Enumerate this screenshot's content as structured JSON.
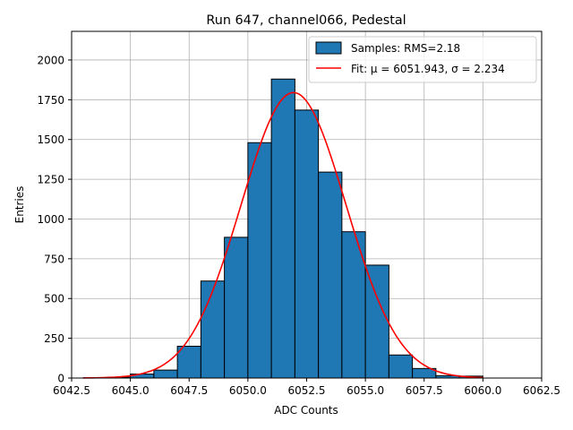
{
  "chart_data": {
    "type": "bar",
    "title": "Run 647, channel066, Pedestal",
    "xlabel": "ADC Counts",
    "ylabel": "Entries",
    "xlim": [
      6042.5,
      6062.5
    ],
    "ylim": [
      0,
      2180
    ],
    "grid": true,
    "legend_position": "top-right",
    "x_ticks": [
      6042.5,
      6045.0,
      6047.5,
      6050.0,
      6052.5,
      6055.0,
      6057.5,
      6060.0,
      6062.5
    ],
    "y_ticks": [
      0,
      250,
      500,
      750,
      1000,
      1250,
      1500,
      1750,
      2000
    ],
    "bin_edges": [
      6043,
      6044,
      6045,
      6046,
      6047,
      6048,
      6049,
      6050,
      6051,
      6052,
      6053,
      6054,
      6055,
      6056,
      6057,
      6058,
      6059,
      6060
    ],
    "counts": [
      2,
      5,
      25,
      50,
      200,
      610,
      885,
      1480,
      1880,
      1685,
      1295,
      920,
      710,
      145,
      60,
      15,
      12
    ],
    "series": [
      {
        "name": "Samples: RMS=2.18",
        "kind": "histogram",
        "color": "#1f77b4"
      },
      {
        "name": "Fit: μ = 6051.943, σ = 2.234",
        "kind": "line",
        "color": "#ff0000",
        "mu": 6051.943,
        "sigma": 2.234,
        "amplitude": 1795,
        "x_range": [
          6043,
          6060
        ]
      }
    ]
  }
}
